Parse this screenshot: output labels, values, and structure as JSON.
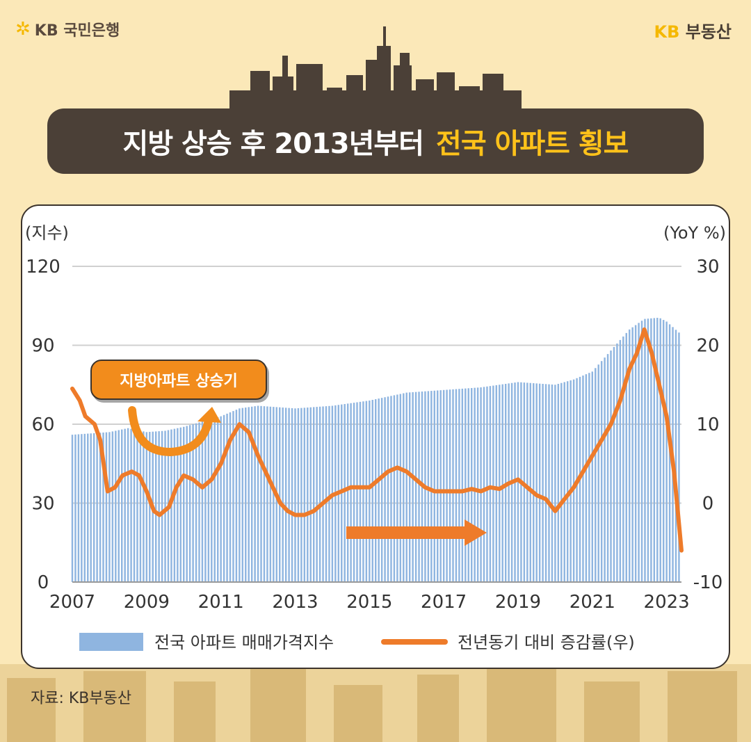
{
  "header": {
    "bank_logo_text": "KB 국민은행",
    "brand_kb": "KB",
    "brand_text": "부동산"
  },
  "title": {
    "part_white": "지방 상승 후 2013년부터",
    "part_yellow": "전국 아파트 횡보"
  },
  "callout_label": "지방아파트 상승기",
  "source": "자료: KB부동산",
  "colors": {
    "bar": "#8fb5e0",
    "line": "#ee7b2a",
    "title_bg": "#4b4037",
    "accent_yellow": "#ffc21a",
    "page_bg": "#fbe8b8"
  },
  "chart_data": {
    "type": "bar+line",
    "left_axis_label": "(지수)",
    "right_axis_label": "(YoY %)",
    "left_ylim": [
      0,
      120
    ],
    "left_ticks": [
      "120",
      "90",
      "60",
      "30",
      "0"
    ],
    "right_ylim": [
      -10,
      30
    ],
    "right_ticks": [
      "30",
      "20",
      "10",
      "0",
      "-10"
    ],
    "x_range": [
      2007,
      2023.4
    ],
    "x_tick_labels": [
      "2007",
      "2009",
      "2011",
      "2013",
      "2015",
      "2017",
      "2019",
      "2021",
      "2023"
    ],
    "grid": true,
    "legend": [
      "전국 아파트 매매가격지수",
      "전년동기 대비 증감률(우)"
    ],
    "bar_series": {
      "name": "전국 아파트 매매가격지수",
      "x": [
        2007,
        2008,
        2008.5,
        2009,
        2009.5,
        2010,
        2010.5,
        2011,
        2011.5,
        2012,
        2013,
        2014,
        2015,
        2016,
        2017,
        2018,
        2019,
        2019.5,
        2020,
        2020.5,
        2021,
        2021.5,
        2022,
        2022.4,
        2022.8,
        2023,
        2023.4
      ],
      "y": [
        56,
        57,
        58.5,
        57,
        57.5,
        59,
        61,
        63,
        66,
        67,
        66,
        67,
        69,
        72,
        73,
        74,
        76,
        75.5,
        75,
        77,
        80,
        88,
        96,
        100,
        100.5,
        99,
        94
      ]
    },
    "line_series": {
      "name": "전년동기 대비 증감률(우)",
      "x": [
        2007,
        2007.2,
        2007.35,
        2007.6,
        2007.75,
        2007.95,
        2008.15,
        2008.35,
        2008.6,
        2008.8,
        2009,
        2009.2,
        2009.35,
        2009.6,
        2009.8,
        2010,
        2010.25,
        2010.5,
        2010.75,
        2011,
        2011.25,
        2011.5,
        2011.75,
        2012,
        2012.3,
        2012.6,
        2012.8,
        2013,
        2013.25,
        2013.5,
        2013.75,
        2014,
        2014.25,
        2014.5,
        2014.75,
        2015,
        2015.25,
        2015.5,
        2015.75,
        2016,
        2016.25,
        2016.5,
        2016.75,
        2017,
        2017.25,
        2017.5,
        2017.75,
        2018,
        2018.25,
        2018.5,
        2018.75,
        2019,
        2019.25,
        2019.5,
        2019.75,
        2020,
        2020.25,
        2020.5,
        2020.75,
        2021,
        2021.25,
        2021.5,
        2021.75,
        2022,
        2022.2,
        2022.4,
        2022.6,
        2022.8,
        2023,
        2023.2,
        2023.4
      ],
      "y": [
        14.5,
        13,
        11,
        10,
        8,
        1.5,
        2,
        3.5,
        4,
        3.5,
        1.5,
        -1,
        -1.5,
        -0.5,
        2,
        3.5,
        3,
        2,
        3,
        5,
        8,
        10,
        9,
        6,
        3,
        0,
        -1,
        -1.5,
        -1.5,
        -1,
        0,
        1,
        1.5,
        2,
        2,
        2,
        3,
        4,
        4.5,
        4,
        3,
        2,
        1.5,
        1.5,
        1.5,
        1.5,
        1.8,
        1.5,
        2,
        1.8,
        2.5,
        3,
        2,
        1,
        0.5,
        -1,
        0.5,
        2,
        4,
        6,
        8,
        10,
        13,
        17,
        19,
        22,
        19,
        15,
        11,
        4,
        -6
      ]
    }
  }
}
